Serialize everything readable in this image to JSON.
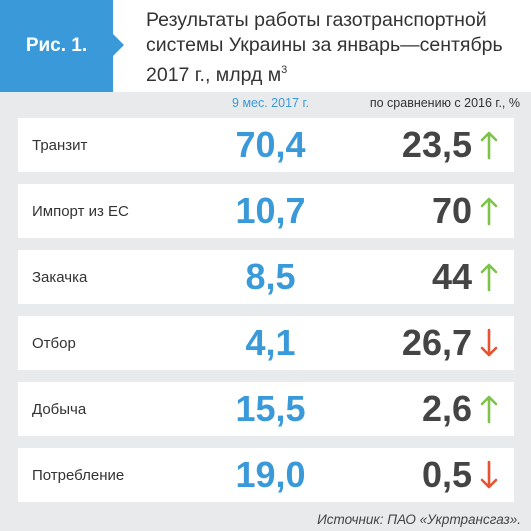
{
  "figure_label": "Рис. 1.",
  "title": {
    "main": "Результаты работы газотранспортной системы Украины за январь—сентябрь 2017 г., млрд м",
    "superscript": "3"
  },
  "columns": {
    "value_header": "9 мес. 2017 г.",
    "change_header": "по сравнению с 2016 г., %"
  },
  "rows": [
    {
      "label": "Транзит",
      "value": "70,4",
      "change": "23,5",
      "direction": "up"
    },
    {
      "label": "Импорт из ЕС",
      "value": "10,7",
      "change": "70",
      "direction": "up"
    },
    {
      "label": "Закачка",
      "value": "8,5",
      "change": "44",
      "direction": "up"
    },
    {
      "label": "Отбор",
      "value": "4,1",
      "change": "26,7",
      "direction": "down"
    },
    {
      "label": "Добыча",
      "value": "15,5",
      "change": "2,6",
      "direction": "up"
    },
    {
      "label": "Потребление",
      "value": "19,0",
      "change": "0,5",
      "direction": "down"
    }
  ],
  "colors": {
    "accent": "#3a9ad9",
    "up_arrow": "#7dc34a",
    "down_arrow": "#e8522e",
    "panel_background": "#e9eaeb"
  },
  "icons": {
    "up": "arrow-up-icon",
    "down": "arrow-down-icon"
  },
  "source": "Источник: ПАО «Укртрансгаз»."
}
